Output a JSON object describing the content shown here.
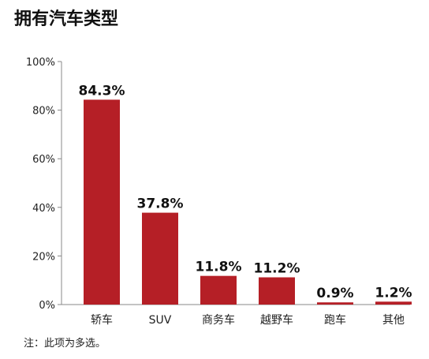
{
  "title": "拥有汽车类型",
  "footnote": "注：此项为多选。",
  "colors": {
    "bar": "#b51f26",
    "axis": "#888888"
  },
  "chart_data": {
    "type": "bar",
    "title": "拥有汽车类型",
    "categories": [
      "轿车",
      "SUV",
      "商务车",
      "越野车",
      "跑车",
      "其他"
    ],
    "values": [
      84.3,
      37.8,
      11.8,
      11.2,
      0.9,
      1.2
    ],
    "data_labels": [
      "84.3%",
      "37.8%",
      "11.8%",
      "11.2%",
      "0.9%",
      "1.2%"
    ],
    "ylim": [
      0,
      100
    ],
    "yticks": [
      0,
      20,
      40,
      60,
      80,
      100
    ],
    "ytick_labels": [
      "0%",
      "20%",
      "40%",
      "60%",
      "80%",
      "100%"
    ],
    "grid": false
  }
}
